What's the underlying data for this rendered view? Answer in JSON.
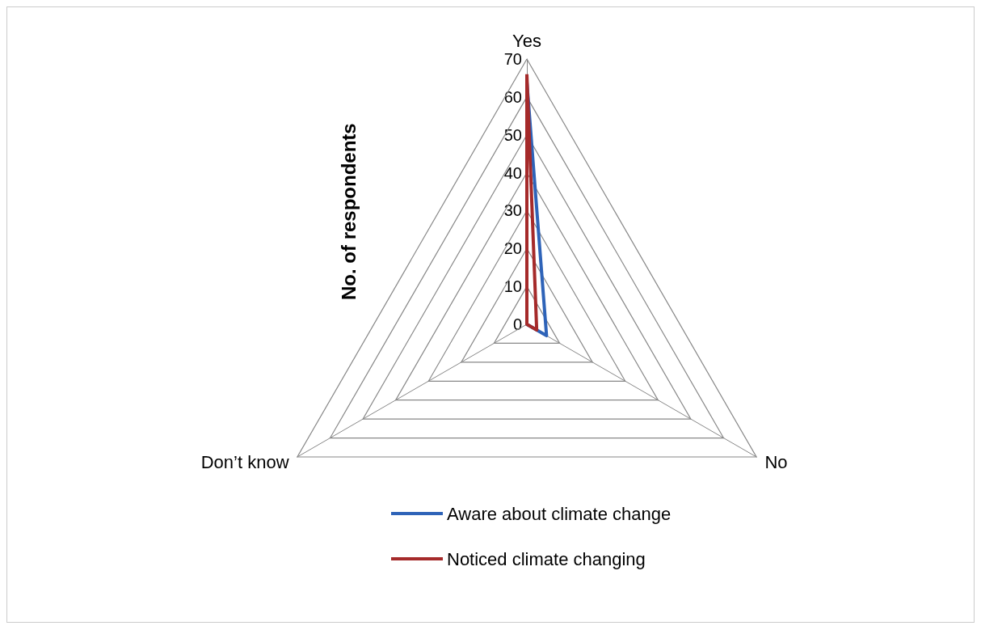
{
  "chart_data": {
    "type": "radar",
    "ylabel": "No. of respondents",
    "categories": [
      "Yes",
      "No",
      "Don’t know"
    ],
    "ylim": [
      0,
      70
    ],
    "yticks": [
      0,
      10,
      20,
      30,
      40,
      50,
      60,
      70
    ],
    "legend": "bottom",
    "marker": "none",
    "series": [
      {
        "name": "Aware about climate change",
        "color": "#2e63b8",
        "values": [
          64,
          6,
          0
        ]
      },
      {
        "name": "Noticed climate changing",
        "color": "#a52a2a",
        "values": [
          66,
          3,
          0
        ]
      }
    ]
  }
}
